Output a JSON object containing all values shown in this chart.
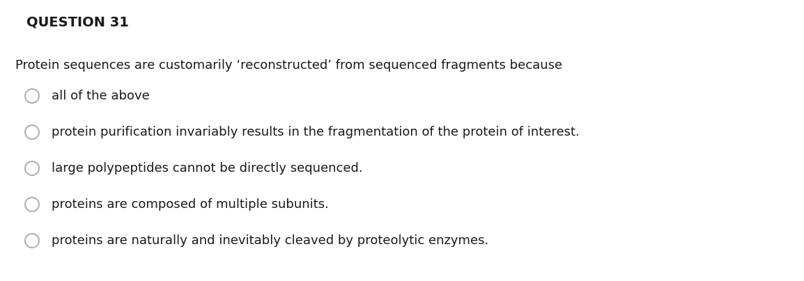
{
  "title": "QUESTION 31",
  "question": "Protein sequences are customarily ‘reconstructed’ from sequenced fragments because",
  "options": [
    "all of the above",
    "protein purification invariably results in the fragmentation of the protein of interest.",
    "large polypeptides cannot be directly sequenced.",
    "proteins are composed of multiple subunits.",
    "proteins are naturally and inevitably cleaved by proteolytic enzymes."
  ],
  "background_color": "#ffffff",
  "text_color": "#1a1a1a",
  "circle_edge_color": "#b0b0b0",
  "title_fontsize": 14,
  "question_fontsize": 13,
  "option_fontsize": 13,
  "fig_width": 11.54,
  "fig_height": 4.04,
  "dpi": 100
}
